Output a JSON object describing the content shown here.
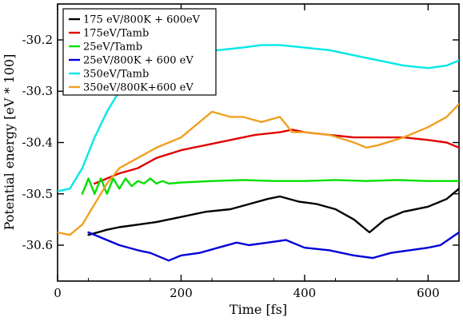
{
  "chart_data": {
    "type": "line",
    "title": "",
    "xlabel": "Time [fs]",
    "ylabel": "Potential energy [eV * 100]",
    "xlim": [
      0,
      650
    ],
    "ylim": [
      -30.67,
      -30.13
    ],
    "x_ticks": [
      0,
      200,
      400,
      600
    ],
    "x_tick_labels": [
      "0",
      "200",
      "400",
      "600"
    ],
    "y_ticks": [
      -30.6,
      -30.5,
      -30.4,
      -30.3,
      -30.2
    ],
    "y_tick_labels": [
      "-30.6",
      "-30.5",
      "-30.4",
      "-30.3",
      "-30.2"
    ],
    "grid": false,
    "legend_position": "top-left",
    "series": [
      {
        "name": "175 eV/800K + 600eV",
        "color": "#000000",
        "x": [
          50,
          80,
          100,
          130,
          160,
          200,
          240,
          280,
          310,
          340,
          360,
          390,
          420,
          450,
          480,
          505,
          530,
          560,
          600,
          630,
          650
        ],
        "y": [
          -30.58,
          -30.57,
          -30.565,
          -30.56,
          -30.555,
          -30.545,
          -30.535,
          -30.53,
          -30.52,
          -30.51,
          -30.505,
          -30.515,
          -30.52,
          -30.53,
          -30.55,
          -30.575,
          -30.55,
          -30.535,
          -30.525,
          -30.51,
          -30.49
        ]
      },
      {
        "name": "175eV/Tamb",
        "color": "#e00000",
        "x": [
          60,
          80,
          100,
          130,
          160,
          200,
          240,
          280,
          320,
          360,
          380,
          400,
          440,
          480,
          520,
          560,
          600,
          630,
          650
        ],
        "y": [
          -30.48,
          -30.47,
          -30.46,
          -30.45,
          -30.43,
          -30.415,
          -30.405,
          -30.395,
          -30.385,
          -30.38,
          -30.375,
          -30.38,
          -30.385,
          -30.39,
          -30.39,
          -30.39,
          -30.395,
          -30.4,
          -30.41
        ]
      },
      {
        "name": "25eV/Tamb",
        "color": "#00e000",
        "x": [
          40,
          50,
          60,
          70,
          80,
          90,
          100,
          110,
          120,
          130,
          140,
          150,
          160,
          170,
          180,
          200,
          250,
          300,
          350,
          400,
          450,
          500,
          550,
          600,
          650
        ],
        "y": [
          -30.5,
          -30.47,
          -30.5,
          -30.47,
          -30.5,
          -30.47,
          -30.49,
          -30.47,
          -30.485,
          -30.475,
          -30.48,
          -30.47,
          -30.48,
          -30.475,
          -30.48,
          -30.478,
          -30.475,
          -30.473,
          -30.475,
          -30.475,
          -30.473,
          -30.475,
          -30.473,
          -30.475,
          -30.475
        ]
      },
      {
        "name": "25eV/800K + 600 eV",
        "color": "#0000d8",
        "x": [
          50,
          80,
          100,
          130,
          150,
          180,
          200,
          230,
          260,
          290,
          310,
          340,
          370,
          400,
          440,
          480,
          510,
          540,
          570,
          600,
          620,
          650
        ],
        "y": [
          -30.575,
          -30.59,
          -30.6,
          -30.61,
          -30.615,
          -30.63,
          -30.62,
          -30.615,
          -30.605,
          -30.595,
          -30.6,
          -30.595,
          -30.59,
          -30.605,
          -30.61,
          -30.62,
          -30.625,
          -30.615,
          -30.61,
          -30.605,
          -30.6,
          -30.575
        ]
      },
      {
        "name": "350eV/Tamb",
        "color": "#00e8e8",
        "x": [
          0,
          20,
          40,
          60,
          80,
          100,
          120,
          140,
          160,
          180,
          200,
          230,
          260,
          300,
          330,
          360,
          400,
          440,
          480,
          520,
          560,
          600,
          630,
          650
        ],
        "y": [
          -30.495,
          -30.49,
          -30.45,
          -30.39,
          -30.34,
          -30.3,
          -30.27,
          -30.25,
          -30.24,
          -30.235,
          -30.225,
          -30.22,
          -30.22,
          -30.215,
          -30.21,
          -30.21,
          -30.215,
          -30.22,
          -30.23,
          -30.24,
          -30.25,
          -30.255,
          -30.25,
          -30.24
        ]
      },
      {
        "name": "350eV/800K+600 eV",
        "color": "#f0a020",
        "x": [
          0,
          20,
          40,
          60,
          80,
          100,
          130,
          160,
          200,
          230,
          250,
          280,
          300,
          330,
          360,
          380,
          400,
          440,
          480,
          500,
          520,
          560,
          600,
          630,
          650
        ],
        "y": [
          -30.575,
          -30.58,
          -30.56,
          -30.52,
          -30.48,
          -30.45,
          -30.43,
          -30.41,
          -30.39,
          -30.36,
          -30.34,
          -30.35,
          -30.35,
          -30.36,
          -30.35,
          -30.38,
          -30.38,
          -30.385,
          -30.4,
          -30.41,
          -30.405,
          -30.39,
          -30.37,
          -30.35,
          -30.325
        ]
      }
    ]
  }
}
